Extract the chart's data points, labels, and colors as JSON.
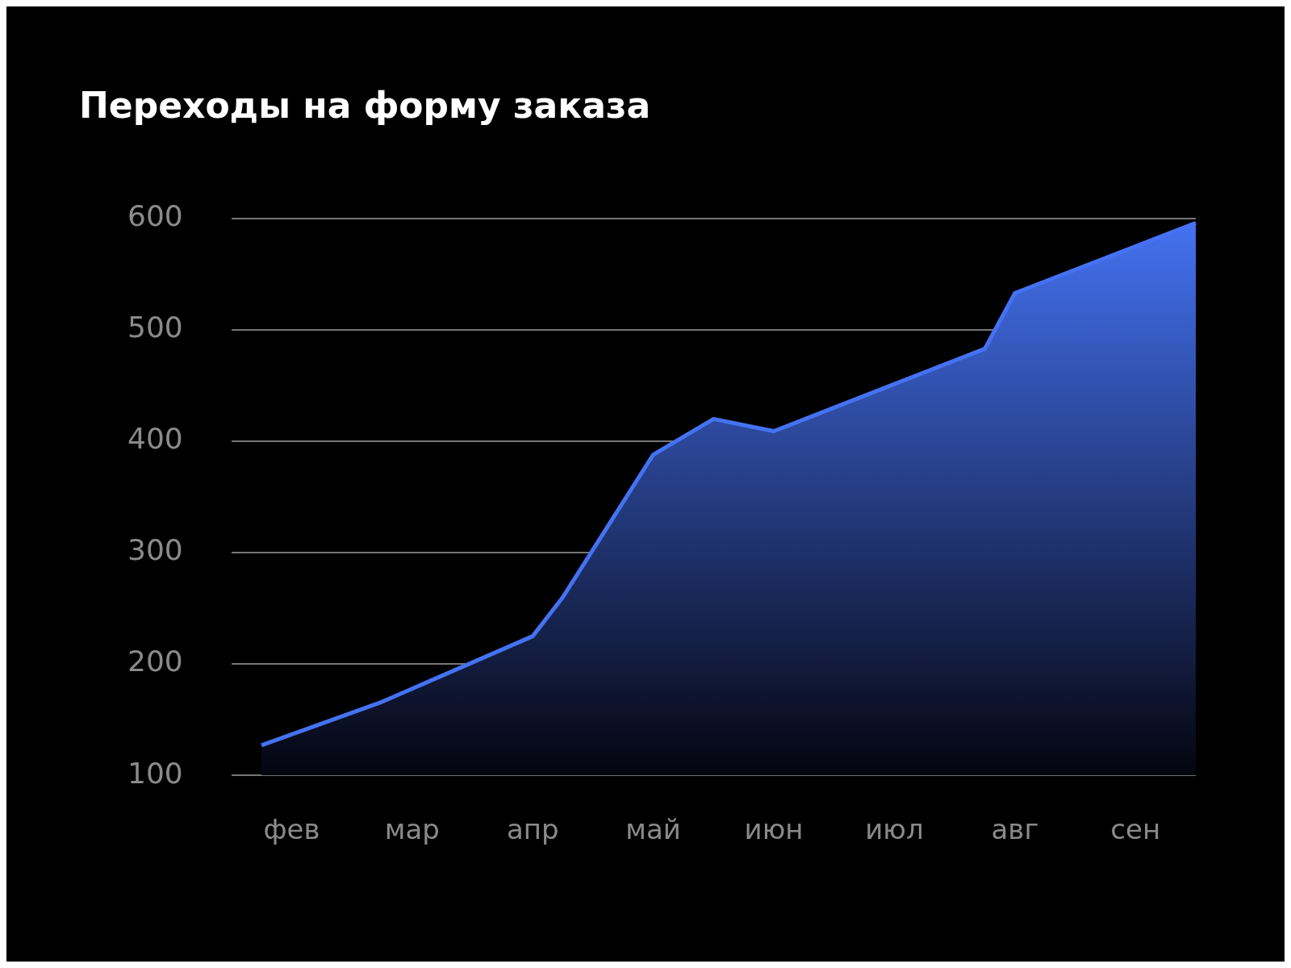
{
  "chart_data": {
    "type": "area",
    "title": "Переходы на форму заказа",
    "categories": [
      null,
      null,
      "фев",
      null,
      null,
      null,
      "мар",
      null,
      null,
      null,
      "апр",
      null,
      null,
      null,
      "май",
      null,
      null,
      null,
      "июн",
      null,
      null,
      null,
      "июл",
      null,
      null,
      null,
      "авг",
      null,
      null,
      null,
      "сен",
      null,
      null
    ],
    "series": [
      {
        "color": "#4472f2",
        "values": [
          null,
          127,
          null,
          null,
          null,
          166,
          null,
          null,
          null,
          null,
          225,
          260,
          null,
          null,
          388,
          null,
          420,
          null,
          409,
          null,
          null,
          null,
          null,
          null,
          null,
          483,
          533,
          null,
          null,
          null,
          null,
          null,
          596
        ]
      }
    ],
    "ylim": [
      100,
      600
    ],
    "yticks": [
      100,
      200,
      300,
      400,
      500,
      600
    ],
    "grid": "y",
    "legend": false,
    "marker": "none"
  }
}
